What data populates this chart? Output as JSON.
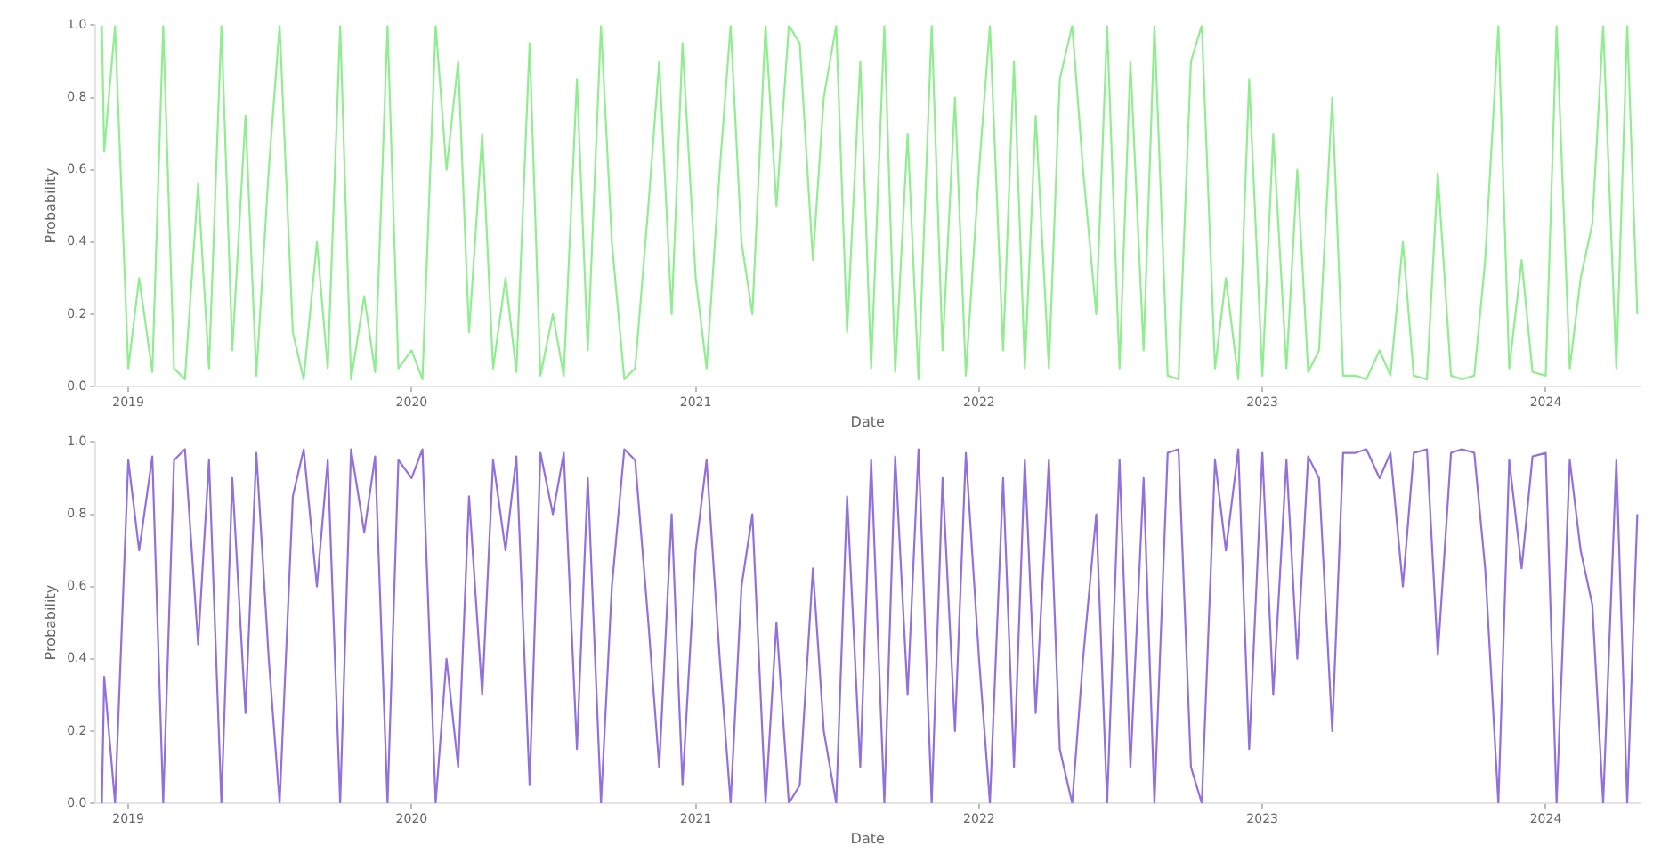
{
  "chart_data": [
    {
      "type": "line",
      "xlabel": "Date",
      "ylabel": "Probability",
      "xlim": [
        "2018-11-20",
        "2024-05-01"
      ],
      "ylim": [
        0,
        1
      ],
      "xticks": [
        "2019",
        "2020",
        "2021",
        "2022",
        "2023",
        "2024"
      ],
      "yticks": [
        {
          "value": 0,
          "label": "0.0"
        },
        {
          "value": 0.2,
          "label": "0.2"
        },
        {
          "value": 0.4,
          "label": "0.4"
        },
        {
          "value": 0.6,
          "label": "0.6"
        },
        {
          "value": 0.8,
          "label": "0.8"
        },
        {
          "value": 1,
          "label": "1.0"
        }
      ],
      "x": [
        "2018-11-28",
        "2018-12-01",
        "2018-12-15",
        "2019-01-01",
        "2019-01-15",
        "2019-02-01",
        "2019-02-15",
        "2019-03-01",
        "2019-03-15",
        "2019-04-01",
        "2019-04-15",
        "2019-05-01",
        "2019-05-15",
        "2019-06-01",
        "2019-06-15",
        "2019-07-01",
        "2019-07-15",
        "2019-08-01",
        "2019-08-15",
        "2019-09-01",
        "2019-09-15",
        "2019-10-01",
        "2019-10-15",
        "2019-11-01",
        "2019-11-15",
        "2019-12-01",
        "2019-12-15",
        "2020-01-01",
        "2020-01-15",
        "2020-02-01",
        "2020-02-15",
        "2020-03-01",
        "2020-03-15",
        "2020-04-01",
        "2020-04-15",
        "2020-05-01",
        "2020-05-15",
        "2020-06-01",
        "2020-06-15",
        "2020-07-01",
        "2020-07-15",
        "2020-08-01",
        "2020-08-15",
        "2020-09-01",
        "2020-09-15",
        "2020-10-01",
        "2020-10-15",
        "2020-11-01",
        "2020-11-15",
        "2020-12-01",
        "2020-12-15",
        "2021-01-01",
        "2021-01-15",
        "2021-02-01",
        "2021-02-15",
        "2021-03-01",
        "2021-03-15",
        "2021-04-01",
        "2021-04-15",
        "2021-05-01",
        "2021-05-15",
        "2021-06-01",
        "2021-06-15",
        "2021-07-01",
        "2021-07-15",
        "2021-08-01",
        "2021-08-15",
        "2021-09-01",
        "2021-09-15",
        "2021-10-01",
        "2021-10-15",
        "2021-11-01",
        "2021-11-15",
        "2021-12-01",
        "2021-12-15",
        "2022-01-01",
        "2022-01-15",
        "2022-02-01",
        "2022-02-15",
        "2022-03-01",
        "2022-03-15",
        "2022-04-01",
        "2022-04-15",
        "2022-05-01",
        "2022-05-15",
        "2022-06-01",
        "2022-06-15",
        "2022-07-01",
        "2022-07-15",
        "2022-08-01",
        "2022-08-15",
        "2022-09-01",
        "2022-09-15",
        "2022-10-01",
        "2022-10-15",
        "2022-11-01",
        "2022-11-15",
        "2022-12-01",
        "2022-12-15",
        "2023-01-01",
        "2023-01-15",
        "2023-02-01",
        "2023-02-15",
        "2023-03-01",
        "2023-03-15",
        "2023-04-01",
        "2023-04-15",
        "2023-05-01",
        "2023-05-15",
        "2023-06-01",
        "2023-06-15",
        "2023-07-01",
        "2023-07-15",
        "2023-08-01",
        "2023-08-15",
        "2023-09-01",
        "2023-09-15",
        "2023-10-01",
        "2023-10-15",
        "2023-11-01",
        "2023-11-15",
        "2023-12-01",
        "2023-12-15",
        "2024-01-01",
        "2024-01-15",
        "2024-02-01",
        "2024-02-15",
        "2024-03-01",
        "2024-03-15",
        "2024-04-01",
        "2024-04-15",
        "2024-04-28"
      ],
      "series": [
        {
          "color": "#90ee90",
          "values": [
            1.0,
            0.65,
            1.0,
            0.05,
            0.3,
            0.04,
            1.0,
            0.05,
            0.02,
            0.56,
            0.05,
            1.0,
            0.1,
            0.75,
            0.03,
            0.6,
            1.0,
            0.15,
            0.02,
            0.4,
            0.05,
            1.0,
            0.02,
            0.25,
            0.04,
            1.0,
            0.05,
            0.1,
            0.02,
            1.0,
            0.6,
            0.9,
            0.15,
            0.7,
            0.05,
            0.3,
            0.04,
            0.95,
            0.03,
            0.2,
            0.03,
            0.85,
            0.1,
            1.0,
            0.4,
            0.02,
            0.05,
            0.5,
            0.9,
            0.2,
            0.95,
            0.3,
            0.05,
            0.6,
            1.0,
            0.4,
            0.2,
            1.0,
            0.5,
            1.0,
            0.95,
            0.35,
            0.8,
            1.0,
            0.15,
            0.9,
            0.05,
            1.0,
            0.04,
            0.7,
            0.02,
            1.0,
            0.1,
            0.8,
            0.03,
            0.6,
            1.0,
            0.1,
            0.9,
            0.05,
            0.75,
            0.05,
            0.85,
            1.0,
            0.6,
            0.2,
            1.0,
            0.05,
            0.9,
            0.1,
            1.0,
            0.03,
            0.02,
            0.9,
            1.0,
            0.05,
            0.3,
            0.02,
            0.85,
            0.03,
            0.7,
            0.05,
            0.6,
            0.04,
            0.1,
            0.8,
            0.03,
            0.03,
            0.02,
            0.1,
            0.03,
            0.4,
            0.03,
            0.02,
            0.59,
            0.03,
            0.02,
            0.03,
            0.35,
            1.0,
            0.05,
            0.35,
            0.04,
            0.03,
            1.0,
            0.05,
            0.3,
            0.45,
            1.0,
            0.05,
            1.0,
            0.2
          ]
        }
      ]
    },
    {
      "type": "line",
      "xlabel": "Date",
      "ylabel": "Probability",
      "xlim": [
        "2018-11-20",
        "2024-05-01"
      ],
      "ylim": [
        0,
        1
      ],
      "xticks": [
        "2019",
        "2020",
        "2021",
        "2022",
        "2023",
        "2024"
      ],
      "yticks": [
        {
          "value": 0,
          "label": "0.0"
        },
        {
          "value": 0.2,
          "label": "0.2"
        },
        {
          "value": 0.4,
          "label": "0.4"
        },
        {
          "value": 0.6,
          "label": "0.6"
        },
        {
          "value": 0.8,
          "label": "0.8"
        },
        {
          "value": 1,
          "label": "1.0"
        }
      ],
      "x": [
        "2018-11-28",
        "2018-12-01",
        "2018-12-15",
        "2019-01-01",
        "2019-01-15",
        "2019-02-01",
        "2019-02-15",
        "2019-03-01",
        "2019-03-15",
        "2019-04-01",
        "2019-04-15",
        "2019-05-01",
        "2019-05-15",
        "2019-06-01",
        "2019-06-15",
        "2019-07-01",
        "2019-07-15",
        "2019-08-01",
        "2019-08-15",
        "2019-09-01",
        "2019-09-15",
        "2019-10-01",
        "2019-10-15",
        "2019-11-01",
        "2019-11-15",
        "2019-12-01",
        "2019-12-15",
        "2020-01-01",
        "2020-01-15",
        "2020-02-01",
        "2020-02-15",
        "2020-03-01",
        "2020-03-15",
        "2020-04-01",
        "2020-04-15",
        "2020-05-01",
        "2020-05-15",
        "2020-06-01",
        "2020-06-15",
        "2020-07-01",
        "2020-07-15",
        "2020-08-01",
        "2020-08-15",
        "2020-09-01",
        "2020-09-15",
        "2020-10-01",
        "2020-10-15",
        "2020-11-01",
        "2020-11-15",
        "2020-12-01",
        "2020-12-15",
        "2021-01-01",
        "2021-01-15",
        "2021-02-01",
        "2021-02-15",
        "2021-03-01",
        "2021-03-15",
        "2021-04-01",
        "2021-04-15",
        "2021-05-01",
        "2021-05-15",
        "2021-06-01",
        "2021-06-15",
        "2021-07-01",
        "2021-07-15",
        "2021-08-01",
        "2021-08-15",
        "2021-09-01",
        "2021-09-15",
        "2021-10-01",
        "2021-10-15",
        "2021-11-01",
        "2021-11-15",
        "2021-12-01",
        "2021-12-15",
        "2022-01-01",
        "2022-01-15",
        "2022-02-01",
        "2022-02-15",
        "2022-03-01",
        "2022-03-15",
        "2022-04-01",
        "2022-04-15",
        "2022-05-01",
        "2022-05-15",
        "2022-06-01",
        "2022-06-15",
        "2022-07-01",
        "2022-07-15",
        "2022-08-01",
        "2022-08-15",
        "2022-09-01",
        "2022-09-15",
        "2022-10-01",
        "2022-10-15",
        "2022-11-01",
        "2022-11-15",
        "2022-12-01",
        "2022-12-15",
        "2023-01-01",
        "2023-01-15",
        "2023-02-01",
        "2023-02-15",
        "2023-03-01",
        "2023-03-15",
        "2023-04-01",
        "2023-04-15",
        "2023-05-01",
        "2023-05-15",
        "2023-06-01",
        "2023-06-15",
        "2023-07-01",
        "2023-07-15",
        "2023-08-01",
        "2023-08-15",
        "2023-09-01",
        "2023-09-15",
        "2023-10-01",
        "2023-10-15",
        "2023-11-01",
        "2023-11-15",
        "2023-12-01",
        "2023-12-15",
        "2024-01-01",
        "2024-01-15",
        "2024-02-01",
        "2024-02-15",
        "2024-03-01",
        "2024-03-15",
        "2024-04-01",
        "2024-04-15",
        "2024-04-28"
      ],
      "series": [
        {
          "color": "#9370db",
          "values": [
            0.0,
            0.35,
            0.0,
            0.95,
            0.7,
            0.96,
            0.0,
            0.95,
            0.98,
            0.44,
            0.95,
            0.0,
            0.9,
            0.25,
            0.97,
            0.4,
            0.0,
            0.85,
            0.98,
            0.6,
            0.95,
            0.0,
            0.98,
            0.75,
            0.96,
            0.0,
            0.95,
            0.9,
            0.98,
            0.0,
            0.4,
            0.1,
            0.85,
            0.3,
            0.95,
            0.7,
            0.96,
            0.05,
            0.97,
            0.8,
            0.97,
            0.15,
            0.9,
            0.0,
            0.6,
            0.98,
            0.95,
            0.5,
            0.1,
            0.8,
            0.05,
            0.7,
            0.95,
            0.4,
            0.0,
            0.6,
            0.8,
            0.0,
            0.5,
            0.0,
            0.05,
            0.65,
            0.2,
            0.0,
            0.85,
            0.1,
            0.95,
            0.0,
            0.96,
            0.3,
            0.98,
            0.0,
            0.9,
            0.2,
            0.97,
            0.4,
            0.0,
            0.9,
            0.1,
            0.95,
            0.25,
            0.95,
            0.15,
            0.0,
            0.4,
            0.8,
            0.0,
            0.95,
            0.1,
            0.9,
            0.0,
            0.97,
            0.98,
            0.1,
            0.0,
            0.95,
            0.7,
            0.98,
            0.15,
            0.97,
            0.3,
            0.95,
            0.4,
            0.96,
            0.9,
            0.2,
            0.97,
            0.97,
            0.98,
            0.9,
            0.97,
            0.6,
            0.97,
            0.98,
            0.41,
            0.97,
            0.98,
            0.97,
            0.65,
            0.0,
            0.95,
            0.65,
            0.96,
            0.97,
            0.0,
            0.95,
            0.7,
            0.55,
            0.0,
            0.95,
            0.0,
            0.8
          ]
        }
      ]
    }
  ]
}
